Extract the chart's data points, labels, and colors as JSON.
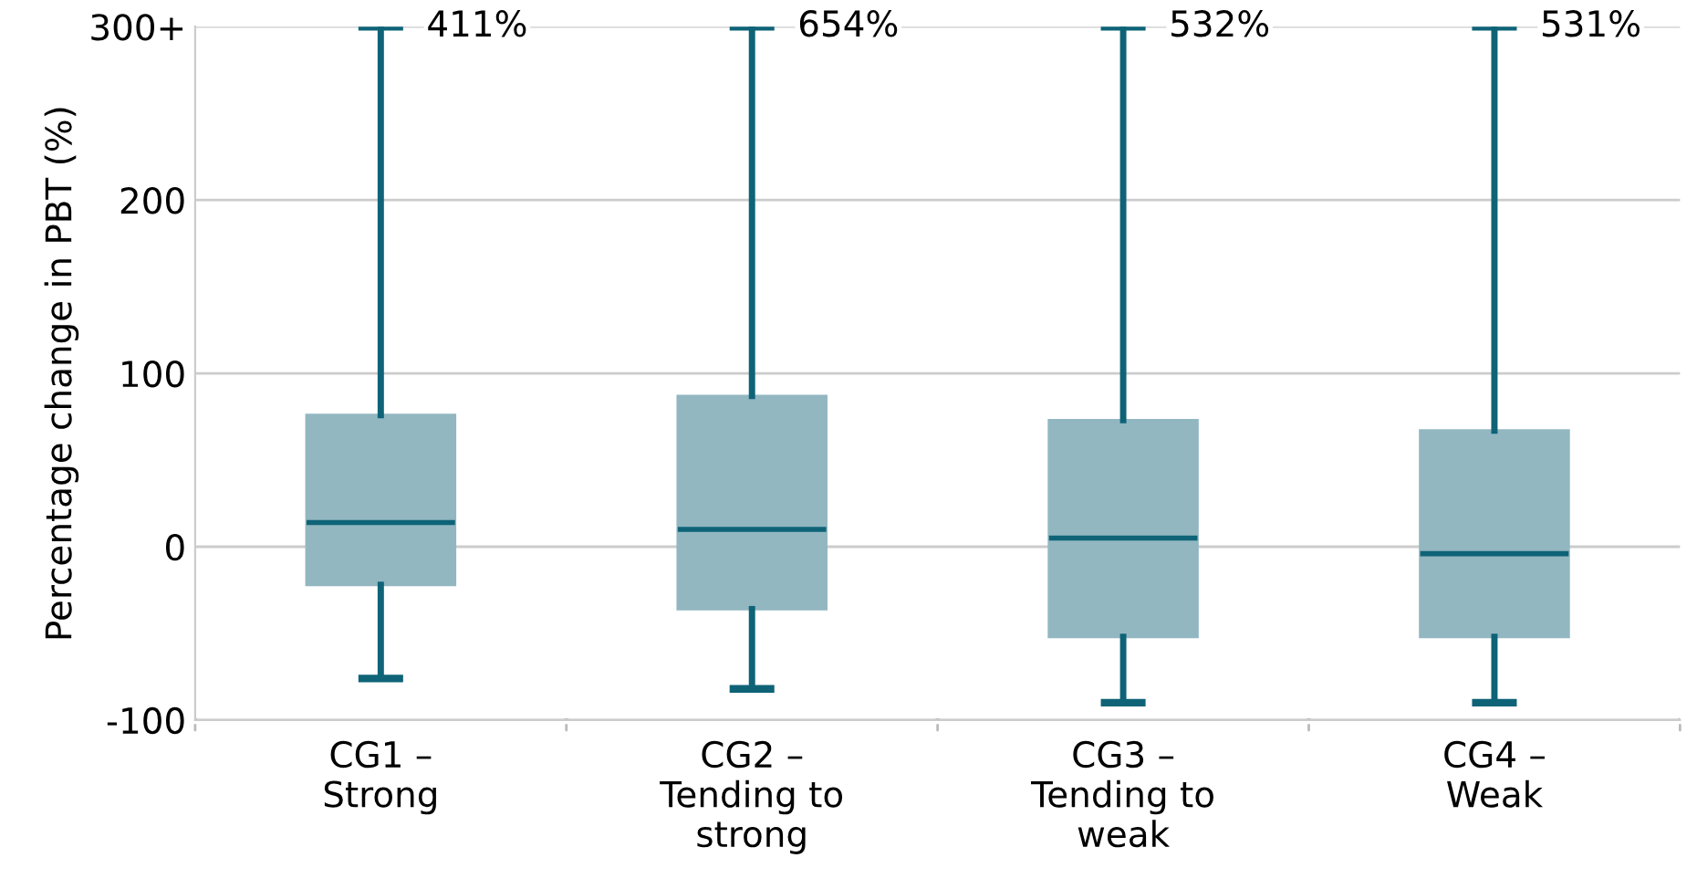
{
  "chart_data": {
    "type": "box",
    "ylabel": "Percentage change in PBT (%)",
    "categories": [
      "CG1 –\nStrong",
      "CG2 –\nTending to\nstrong",
      "CG3 –\nTending to\nweak",
      "CG4 –\nWeak"
    ],
    "boxes": [
      {
        "low": -76,
        "q1": -22,
        "median": 14,
        "q3": 76,
        "high": 300
      },
      {
        "low": -82,
        "q1": -36,
        "median": 10,
        "q3": 87,
        "high": 300
      },
      {
        "low": -90,
        "q1": -52,
        "median": 5,
        "q3": 73,
        "high": 300
      },
      {
        "low": -90,
        "q1": -52,
        "median": -4,
        "q3": 67,
        "high": 300
      }
    ],
    "color": "#92b7c1",
    "ylim": [
      -100,
      300
    ],
    "yticks": [
      -100,
      0,
      100,
      200,
      {
        "value": 300,
        "label": "300+"
      }
    ],
    "grid": "y",
    "annotations": [
      {
        "text": "411%",
        "x": "CG1 –\nStrong",
        "y": 300
      },
      {
        "text": "654%",
        "x": "CG2 –\nTending to\nstrong",
        "y": 300
      },
      {
        "text": "532%",
        "x": "CG3 –\nTending to\nweak",
        "y": 300
      },
      {
        "text": "531%",
        "x": "CG4 –\nWeak",
        "y": 300
      }
    ]
  }
}
